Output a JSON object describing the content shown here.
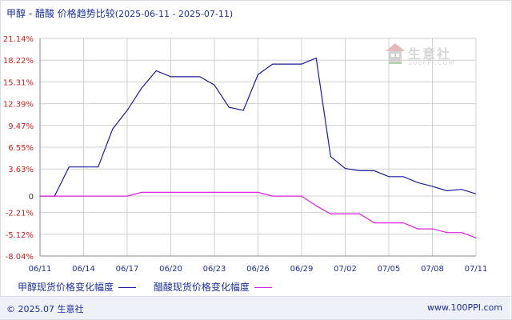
{
  "title": {
    "main": "甲醇 - 醋酸 价格趋势比较",
    "date_range": "(2025-06-11 - 2025-07-11)"
  },
  "watermark": {
    "text": "生意社",
    "sub": "100PPI.COM"
  },
  "legend": {
    "methanol": "甲醇现货价格变化幅度",
    "acetic": "醋酸现货价格变化幅度"
  },
  "footer": {
    "copyright": "© 2025.07 生意社",
    "site": "www.100PPI.com"
  },
  "colors": {
    "methanol": "#1c1c9c",
    "acetic": "#e020e0",
    "grid": "#d0d0d0",
    "axis_label": "#cc2020"
  },
  "chart_data": {
    "type": "line",
    "title": "甲醇 - 醋酸 价格趋势比较",
    "xlabel": "",
    "ylabel": "",
    "ylim": [
      -8.04,
      21.14
    ],
    "xlim": [
      0,
      30
    ],
    "yticks": [
      {
        "value": 21.14,
        "label": "21.14%"
      },
      {
        "value": 18.22,
        "label": "18.22%"
      },
      {
        "value": 15.31,
        "label": "15.31%"
      },
      {
        "value": 12.39,
        "label": "12.39%"
      },
      {
        "value": 9.47,
        "label": "9.47%"
      },
      {
        "value": 6.55,
        "label": "6.55%"
      },
      {
        "value": 3.63,
        "label": "3.63%"
      },
      {
        "value": 0,
        "label": "0"
      },
      {
        "value": -2.21,
        "label": "-2.21%"
      },
      {
        "value": -5.12,
        "label": "-5.12%"
      },
      {
        "value": -8.04,
        "label": "-8.04%"
      }
    ],
    "xticks": [
      {
        "value": 0,
        "label": "06/11"
      },
      {
        "value": 3,
        "label": "06/14"
      },
      {
        "value": 6,
        "label": "06/17"
      },
      {
        "value": 9,
        "label": "06/20"
      },
      {
        "value": 12,
        "label": "06/23"
      },
      {
        "value": 15,
        "label": "06/26"
      },
      {
        "value": 18,
        "label": "06/29"
      },
      {
        "value": 21,
        "label": "07/02"
      },
      {
        "value": 24,
        "label": "07/05"
      },
      {
        "value": 27,
        "label": "07/08"
      },
      {
        "value": 30,
        "label": "07/11"
      }
    ],
    "grid": true,
    "legend_position": "bottom",
    "series": [
      {
        "name": "甲醇现货价格变化幅度",
        "points": [
          [
            0,
            0
          ],
          [
            1,
            0
          ],
          [
            2,
            3.9
          ],
          [
            3,
            3.9
          ],
          [
            4,
            3.9
          ],
          [
            5,
            9.0
          ],
          [
            6,
            11.5
          ],
          [
            7,
            14.5
          ],
          [
            8,
            16.8
          ],
          [
            9,
            16.0
          ],
          [
            10,
            16.0
          ],
          [
            11,
            16.0
          ],
          [
            12,
            14.9
          ],
          [
            13,
            11.9
          ],
          [
            14,
            11.5
          ],
          [
            15,
            16.3
          ],
          [
            16,
            17.7
          ],
          [
            17,
            17.7
          ],
          [
            18,
            17.7
          ],
          [
            19,
            18.5
          ],
          [
            20,
            5.3
          ],
          [
            21,
            3.7
          ],
          [
            22,
            3.4
          ],
          [
            23,
            3.4
          ],
          [
            24,
            2.6
          ],
          [
            25,
            2.6
          ],
          [
            26,
            1.8
          ],
          [
            27,
            1.3
          ],
          [
            28,
            0.7
          ],
          [
            29,
            0.9
          ],
          [
            30,
            0.3
          ]
        ]
      },
      {
        "name": "醋酸现货价格变化幅度",
        "points": [
          [
            0,
            0
          ],
          [
            1,
            0
          ],
          [
            2,
            0
          ],
          [
            3,
            0
          ],
          [
            4,
            0
          ],
          [
            5,
            0
          ],
          [
            6,
            0
          ],
          [
            7,
            0.5
          ],
          [
            8,
            0.5
          ],
          [
            9,
            0.5
          ],
          [
            10,
            0.5
          ],
          [
            11,
            0.5
          ],
          [
            12,
            0.5
          ],
          [
            13,
            0.5
          ],
          [
            14,
            0.5
          ],
          [
            15,
            0.5
          ],
          [
            16,
            0
          ],
          [
            17,
            0
          ],
          [
            18,
            0
          ],
          [
            19,
            -1.3
          ],
          [
            20,
            -2.4
          ],
          [
            21,
            -2.4
          ],
          [
            22,
            -2.4
          ],
          [
            23,
            -3.6
          ],
          [
            24,
            -3.6
          ],
          [
            25,
            -3.6
          ],
          [
            26,
            -4.4
          ],
          [
            27,
            -4.4
          ],
          [
            28,
            -4.9
          ],
          [
            29,
            -4.9
          ],
          [
            30,
            -5.6
          ]
        ]
      }
    ]
  }
}
